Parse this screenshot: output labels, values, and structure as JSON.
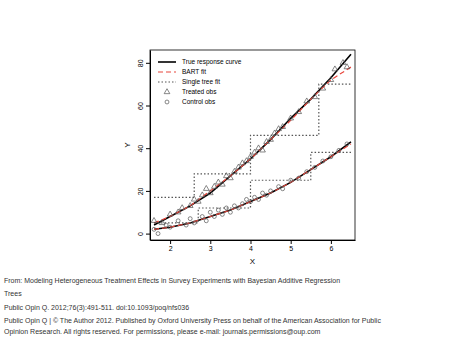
{
  "chart_data": {
    "type": "scatter",
    "xlabel": "X",
    "ylabel": "Y",
    "xlim": [
      1.5,
      6.6
    ],
    "ylim": [
      -3,
      86
    ],
    "xticks": [
      2,
      3,
      4,
      5,
      6
    ],
    "yticks": [
      0,
      20,
      40,
      60,
      80
    ],
    "legend": "top-left",
    "series": [
      {
        "name": "True response curve",
        "type": "line",
        "color": "#000000",
        "line_style": "solid",
        "x": [
          1.6,
          2,
          2.5,
          3,
          3.5,
          4,
          4.5,
          5,
          5.5,
          6,
          6.5,
          null,
          1.6,
          2,
          2.5,
          3,
          3.5,
          4,
          4.5,
          5,
          5.5,
          6,
          6.5
        ],
        "values": [
          4,
          8,
          13,
          19,
          27,
          35,
          44,
          54,
          63,
          73,
          84,
          null,
          2,
          3,
          5,
          8,
          11,
          15,
          19,
          24,
          30,
          36,
          43
        ]
      },
      {
        "name": "BART fit",
        "type": "line",
        "color": "#e8463c",
        "line_style": "dashed",
        "x": [
          1.6,
          2,
          2.5,
          3,
          3.5,
          4,
          4.5,
          5,
          5.5,
          6,
          6.5,
          null,
          1.6,
          2,
          2.5,
          3,
          3.5,
          4,
          4.5,
          5,
          5.5,
          6,
          6.5
        ],
        "values": [
          5,
          8,
          13,
          20,
          27,
          35,
          44,
          53,
          63,
          72,
          78,
          null,
          2,
          3,
          5,
          8,
          11,
          15,
          19,
          24,
          30,
          36,
          42
        ]
      },
      {
        "name": "Single tree fit",
        "type": "line",
        "color": "#555555",
        "line_style": "dotted",
        "x": [
          1.6,
          2.6,
          2.6,
          4,
          4,
          5.7,
          5.7,
          6.5,
          null,
          1.6,
          2.7,
          2.7,
          4,
          4,
          5.5,
          5.5,
          6.5
        ],
        "values": [
          17,
          17,
          28,
          28,
          46,
          46,
          70,
          70,
          null,
          5,
          5,
          12,
          12,
          25,
          25,
          38,
          38
        ]
      },
      {
        "name": "Treated obs",
        "type": "scatter",
        "color": "#555555",
        "marker": "triangle",
        "x": [
          1.6,
          1.8,
          2.0,
          2.2,
          2.3,
          2.5,
          2.6,
          2.7,
          2.8,
          2.9,
          3.0,
          3.1,
          3.2,
          3.3,
          3.4,
          3.5,
          3.6,
          3.7,
          3.8,
          3.9,
          4.0,
          4.1,
          4.2,
          4.3,
          4.4,
          4.5,
          4.6,
          4.7,
          4.8,
          5.0,
          5.2,
          5.4,
          5.6,
          5.8,
          6.0,
          6.1,
          6.3,
          6.4
        ],
        "values": [
          6,
          5,
          9,
          10,
          12,
          13,
          16,
          15,
          18,
          21,
          19,
          22,
          24,
          23,
          27,
          26,
          29,
          31,
          33,
          34,
          36,
          38,
          40,
          39,
          43,
          44,
          47,
          49,
          50,
          54,
          57,
          62,
          64,
          68,
          72,
          77,
          80,
          78
        ]
      },
      {
        "name": "Control obs",
        "type": "scatter",
        "color": "#555555",
        "marker": "circle",
        "x": [
          1.6,
          1.7,
          1.9,
          2.0,
          2.2,
          2.4,
          2.5,
          2.6,
          2.8,
          2.9,
          3.0,
          3.1,
          3.2,
          3.3,
          3.4,
          3.5,
          3.6,
          3.7,
          3.8,
          3.9,
          4.0,
          4.1,
          4.2,
          4.3,
          4.4,
          4.5,
          4.7,
          4.8,
          5.0,
          5.2,
          5.4,
          5.6,
          5.8,
          6.0,
          6.2,
          6.4
        ],
        "values": [
          2,
          0,
          4,
          3,
          6,
          4,
          7,
          5,
          8,
          6,
          10,
          8,
          11,
          9,
          12,
          10,
          13,
          12,
          14,
          16,
          15,
          17,
          16,
          19,
          18,
          20,
          22,
          21,
          25,
          26,
          29,
          31,
          34,
          36,
          39,
          42
        ]
      }
    ],
    "annotations": [
      "From: Modeling Heterogeneous Treatment Effects in Survey Experiments with Bayesian Additive Regression",
      "Trees",
      "Public Opin Q. 2012;76(3):491-511. doi:10.1093/poq/nfs036",
      "Public Opin Q | © The Author 2012. Published by Oxford University Press on behalf of the American Association for Public",
      "Opinion Research. All rights reserved. For permissions, please e-mail: journals.permissions@oup.com"
    ]
  }
}
